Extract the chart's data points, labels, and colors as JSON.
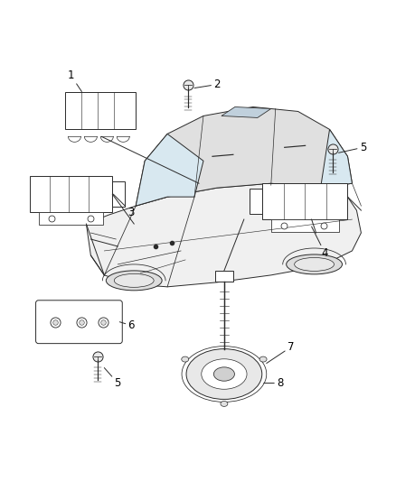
{
  "bg_color": "#ffffff",
  "line_color": "#2a2a2a",
  "label_color": "#000000",
  "fig_width": 4.38,
  "fig_height": 5.33,
  "dpi": 100,
  "car_fill": "#f0f0f0",
  "car_fill2": "#e0e0e0",
  "label_fontsize": 8.5
}
